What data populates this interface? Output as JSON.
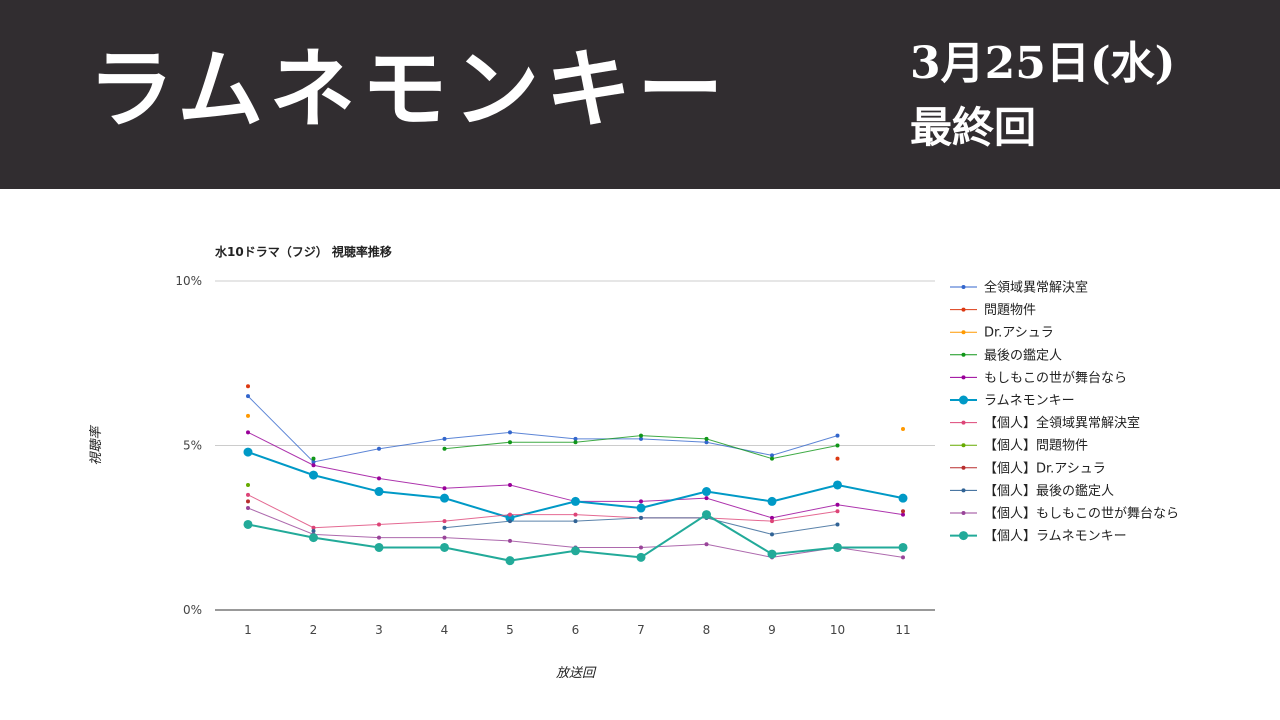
{
  "banner": {
    "title": "ラムネモンキー",
    "date": "3月25日(水)",
    "subtitle": "最終回",
    "background": "#312d30"
  },
  "chart_data": {
    "type": "line",
    "title": "水10ドラマ（フジ） 視聴率推移",
    "xlabel": "放送回",
    "ylabel": "視聴率",
    "categories": [
      "1",
      "2",
      "3",
      "4",
      "5",
      "6",
      "7",
      "8",
      "9",
      "10",
      "11"
    ],
    "ylim": [
      0,
      10
    ],
    "yticks": [
      "0%",
      "5%",
      "10%"
    ],
    "grid": true,
    "legend": "right",
    "series": [
      {
        "name": "全領域異常解決室",
        "color": "#3366cc",
        "values": [
          6.5,
          4.5,
          4.9,
          5.2,
          5.4,
          5.2,
          5.2,
          5.1,
          4.7,
          5.3,
          null
        ]
      },
      {
        "name": "問題物件",
        "color": "#dc3912",
        "values": [
          6.8,
          null,
          null,
          null,
          null,
          null,
          null,
          null,
          null,
          4.6,
          null
        ]
      },
      {
        "name": "Dr.アシュラ",
        "color": "#ff9900",
        "values": [
          5.9,
          null,
          null,
          null,
          null,
          null,
          null,
          null,
          null,
          null,
          5.5
        ]
      },
      {
        "name": "最後の鑑定人",
        "color": "#109618",
        "values": [
          null,
          4.6,
          null,
          4.9,
          5.1,
          5.1,
          5.3,
          5.2,
          4.6,
          5.0,
          null
        ]
      },
      {
        "name": "もしもこの世が舞台なら",
        "color": "#990099",
        "values": [
          5.4,
          4.4,
          4.0,
          3.7,
          3.8,
          3.3,
          3.3,
          3.4,
          2.8,
          3.2,
          2.9
        ]
      },
      {
        "name": "ラムネモンキー",
        "color": "#0099c6",
        "bold": true,
        "values": [
          4.8,
          4.1,
          3.6,
          3.4,
          2.8,
          3.3,
          3.1,
          3.6,
          3.3,
          3.8,
          3.4
        ]
      },
      {
        "name": "【個人】全領域異常解決室",
        "color": "#dd4477",
        "values": [
          3.5,
          2.5,
          2.6,
          2.7,
          2.9,
          2.9,
          2.8,
          2.8,
          2.7,
          3.0,
          null
        ]
      },
      {
        "name": "【個人】問題物件",
        "color": "#66aa00",
        "values": [
          3.8,
          null,
          null,
          null,
          null,
          null,
          null,
          null,
          null,
          null,
          null
        ]
      },
      {
        "name": "【個人】Dr.アシュラ",
        "color": "#b82e2e",
        "values": [
          3.3,
          null,
          null,
          null,
          null,
          null,
          null,
          null,
          null,
          null,
          3.0
        ]
      },
      {
        "name": "【個人】最後の鑑定人",
        "color": "#316395",
        "values": [
          null,
          2.4,
          null,
          2.5,
          2.7,
          2.7,
          2.8,
          2.8,
          2.3,
          2.6,
          null
        ]
      },
      {
        "name": "【個人】もしもこの世が舞台なら",
        "color": "#994499",
        "values": [
          3.1,
          2.3,
          2.2,
          2.2,
          2.1,
          1.9,
          1.9,
          2.0,
          1.6,
          1.9,
          1.6
        ]
      },
      {
        "name": "【個人】ラムネモンキー",
        "color": "#22aa99",
        "bold": true,
        "values": [
          2.6,
          2.2,
          1.9,
          1.9,
          1.5,
          1.8,
          1.6,
          2.9,
          1.7,
          1.9,
          1.9
        ]
      }
    ]
  }
}
